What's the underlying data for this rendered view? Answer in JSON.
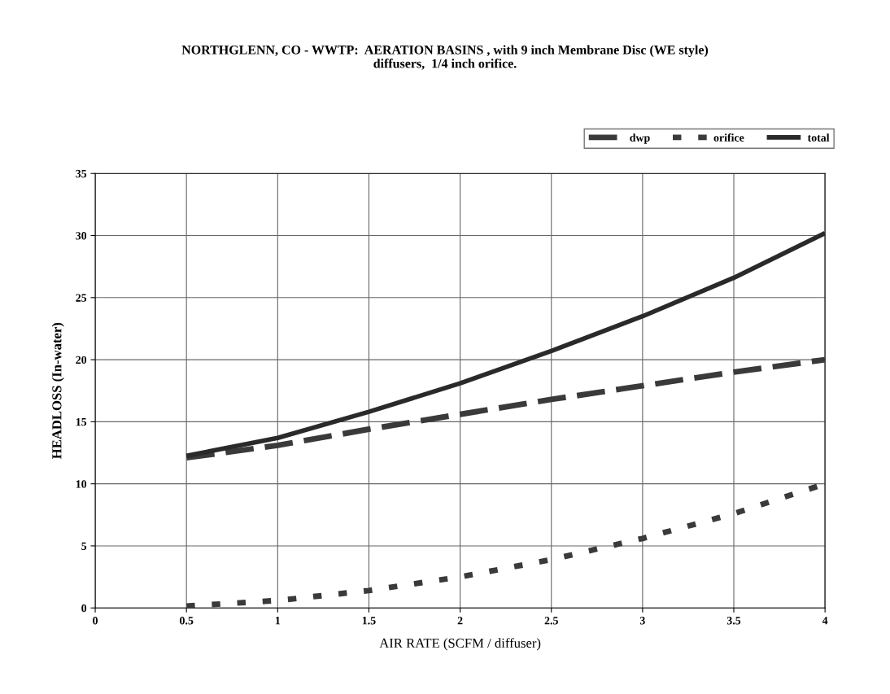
{
  "chart_data": {
    "type": "line",
    "title": "NORTHGLENN, CO - WWTP:  AERATION BASINS , with 9 inch Membrane Disc (WE style)\ndiffusers,  1/4 inch orifice.",
    "xlabel": "AIR RATE (SCFM / diffuser)",
    "ylabel": "HEADLOSS (In-water)",
    "x": [
      0.5,
      1,
      1.5,
      2,
      2.5,
      3,
      3.5,
      4
    ],
    "series": [
      {
        "name": "dwp",
        "color": "#3a3a3a",
        "line_style": "dashed",
        "values": [
          12.1,
          13.1,
          14.4,
          15.6,
          16.8,
          17.9,
          19.0,
          20.0
        ]
      },
      {
        "name": "orifice",
        "color": "#3a3a3a",
        "line_style": "dotted",
        "values": [
          0.15,
          0.6,
          1.4,
          2.5,
          3.9,
          5.6,
          7.6,
          10.0
        ]
      },
      {
        "name": "total",
        "color": "#2a2a2a",
        "line_style": "solid",
        "values": [
          12.25,
          13.7,
          15.8,
          18.1,
          20.7,
          23.5,
          26.6,
          30.2
        ]
      }
    ],
    "xlim": [
      0,
      4
    ],
    "xticks": [
      0,
      0.5,
      1,
      1.5,
      2,
      2.5,
      3,
      3.5,
      4
    ],
    "ylim": [
      0,
      35
    ],
    "yticks": [
      0,
      5,
      10,
      15,
      20,
      25,
      30,
      35
    ],
    "grid": true,
    "legend": "top right",
    "marker": "none"
  }
}
